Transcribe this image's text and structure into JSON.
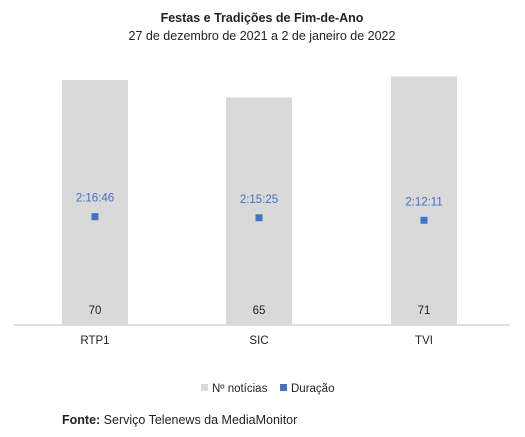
{
  "chart_data": {
    "type": "bar",
    "title": "Festas e Tradições de Fim-de-Ano",
    "subtitle": "27 de dezembro de 2021 a 2 de janeiro de 2022",
    "categories": [
      "RTP1",
      "SIC",
      "TVI"
    ],
    "series": [
      {
        "name": "Nº notícias",
        "type": "bar",
        "values": [
          70,
          65,
          71
        ],
        "color": "#d9d9d9"
      },
      {
        "name": "Duração",
        "type": "marker",
        "values": [
          "2:16:46",
          "2:15:25",
          "2:12:11"
        ],
        "color": "#4472c4"
      }
    ],
    "ylim": [
      0,
      80
    ],
    "grid": false,
    "legend_position": "bottom"
  },
  "source": {
    "label": "Fonte:",
    "text": "Serviço Telenews da MediaMonitor"
  }
}
